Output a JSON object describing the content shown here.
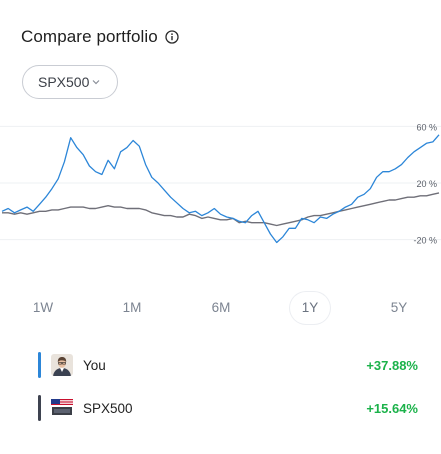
{
  "header": {
    "title": "Compare portfolio",
    "info_icon": "info-icon"
  },
  "compare_select": {
    "value": "SPX500",
    "icon": "chevron-down-icon"
  },
  "chart_data": {
    "type": "line",
    "y_ticks": [
      "60 %",
      "20 %",
      "-20 %"
    ],
    "ylim": [
      -40,
      80
    ],
    "grid": true,
    "colors": {
      "you": "#2c86d8",
      "benchmark": "#6f6f78"
    },
    "series": [
      {
        "name": "You",
        "values": [
          0,
          2,
          -1,
          1,
          3,
          0,
          5,
          10,
          16,
          23,
          35,
          52,
          45,
          40,
          32,
          28,
          26,
          36,
          30,
          42,
          45,
          50,
          46,
          33,
          24,
          20,
          15,
          10,
          6,
          2,
          -1,
          0,
          -3,
          -1,
          2,
          -2,
          -4,
          -5,
          -7,
          -8,
          -3,
          0,
          -8,
          -16,
          -22,
          -18,
          -12,
          -12,
          -5,
          -6,
          -8,
          -4,
          -5,
          -2,
          0,
          3,
          5,
          10,
          12,
          16,
          24,
          28,
          28,
          30,
          33,
          38,
          42,
          45,
          48,
          49,
          54
        ]
      },
      {
        "name": "SPX500",
        "values": [
          -1,
          -1,
          -2,
          -1,
          -2,
          -1,
          0,
          0,
          1,
          1,
          2,
          3,
          3,
          3,
          2,
          2,
          3,
          4,
          3,
          3,
          2,
          2,
          2,
          1,
          -1,
          -2,
          -3,
          -3,
          -4,
          -4,
          -2,
          -3,
          -5,
          -4,
          -5,
          -6,
          -6,
          -5,
          -8,
          -7,
          -8,
          -8,
          -8,
          -9,
          -10,
          -9,
          -8,
          -7,
          -6,
          -4,
          -3,
          -3,
          -2,
          -1,
          0,
          1,
          2,
          3,
          4,
          5,
          6,
          7,
          8,
          8,
          9,
          10,
          10,
          11,
          11,
          12,
          13
        ]
      }
    ]
  },
  "ranges": [
    {
      "label": "1W",
      "active": false
    },
    {
      "label": "1M",
      "active": false
    },
    {
      "label": "6M",
      "active": false
    },
    {
      "label": "1Y",
      "active": true
    },
    {
      "label": "5Y",
      "active": false
    }
  ],
  "legend": [
    {
      "name": "You",
      "value": "+37.88%",
      "color": "#2c86d8",
      "icon": "avatar-icon"
    },
    {
      "name": "SPX500",
      "value": "+15.64%",
      "color": "#3e4350",
      "icon": "us-flag-icon"
    }
  ]
}
